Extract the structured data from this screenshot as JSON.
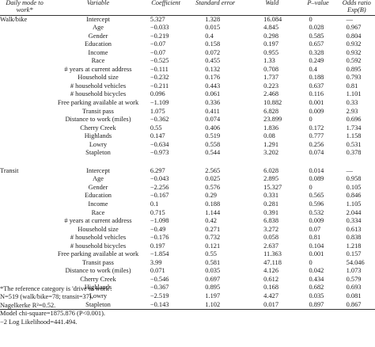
{
  "headers": {
    "group": "Daily mode to work*",
    "variable": "Variable",
    "coefficient": "Coefficient",
    "se": "Standard error",
    "wald": "Wald",
    "p": "P–value",
    "or": "Odds ratio Exp(B)"
  },
  "groups": [
    {
      "label": "Walk/bike",
      "rows": [
        {
          "var": "Intercept",
          "coef": "5.327",
          "se": "1.328",
          "wald": "16.084",
          "p": "0",
          "or": "—"
        },
        {
          "var": "Age",
          "coef": "−0.033",
          "se": "0.015",
          "wald": "4.845",
          "p": "0.028",
          "or": "0.967"
        },
        {
          "var": "Gender",
          "coef": "−0.219",
          "se": "0.4",
          "wald": "0.298",
          "p": "0.585",
          "or": "0.804"
        },
        {
          "var": "Education",
          "coef": "−0.07",
          "se": "0.158",
          "wald": "0.197",
          "p": "0.657",
          "or": "0.932"
        },
        {
          "var": "Income",
          "coef": "−0.07",
          "se": "0.072",
          "wald": "0.955",
          "p": "0.328",
          "or": "0.932"
        },
        {
          "var": "Race",
          "coef": "−0.525",
          "se": "0.455",
          "wald": "1.33",
          "p": "0.249",
          "or": "0.592"
        },
        {
          "var": "# years at current address",
          "coef": "−0.111",
          "se": "0.132",
          "wald": "0.708",
          "p": "0.4",
          "or": "0.895"
        },
        {
          "var": "Household size",
          "coef": "−0.232",
          "se": "0.176",
          "wald": "1.737",
          "p": "0.188",
          "or": "0.793"
        },
        {
          "var": "# household vehicles",
          "coef": "−0.211",
          "se": "0.443",
          "wald": "0.223",
          "p": "0.637",
          "or": "0.81"
        },
        {
          "var": "# household bicycles",
          "coef": "0.096",
          "se": "0.061",
          "wald": "2.468",
          "p": "0.116",
          "or": "1.101"
        },
        {
          "var": "Free parking available at work",
          "coef": "−1.109",
          "se": "0.336",
          "wald": "10.882",
          "p": "0.001",
          "or": "0.33"
        },
        {
          "var": "Transit pass",
          "coef": "1.075",
          "se": "0.411",
          "wald": "6.828",
          "p": "0.009",
          "or": "2.93"
        },
        {
          "var": "Distance to work (miles)",
          "coef": "−0.362",
          "se": "0.074",
          "wald": "23.899",
          "p": "0",
          "or": "0.696"
        },
        {
          "var": "Cherry Creek",
          "coef": "0.55",
          "se": "0.406",
          "wald": "1.836",
          "p": "0.172",
          "or": "1.734"
        },
        {
          "var": "Highlands",
          "coef": "0.147",
          "se": "0.519",
          "wald": "0.08",
          "p": "0.777",
          "or": "1.158"
        },
        {
          "var": "Lowry",
          "coef": "−0.634",
          "se": "0.558",
          "wald": "1.291",
          "p": "0.256",
          "or": "0.531"
        },
        {
          "var": "Stapleton",
          "coef": "−0.973",
          "se": "0.544",
          "wald": "3.202",
          "p": "0.074",
          "or": "0.378"
        }
      ]
    },
    {
      "label": "Transit",
      "rows": [
        {
          "var": "Intercept",
          "coef": "6.297",
          "se": "2.565",
          "wald": "6.028",
          "p": "0.014",
          "or": "—"
        },
        {
          "var": "Age",
          "coef": "−0.043",
          "se": "0.025",
          "wald": "2.895",
          "p": "0.089",
          "or": "0.958"
        },
        {
          "var": "Gender",
          "coef": "−2.256",
          "se": "0.576",
          "wald": "15.327",
          "p": "0",
          "or": "0.105"
        },
        {
          "var": "Education",
          "coef": "−0.167",
          "se": "0.29",
          "wald": "0.331",
          "p": "0.565",
          "or": "0.846"
        },
        {
          "var": "Income",
          "coef": "0.1",
          "se": "0.188",
          "wald": "0.281",
          "p": "0.596",
          "or": "1.105"
        },
        {
          "var": "Race",
          "coef": "0.715",
          "se": "1.144",
          "wald": "0.391",
          "p": "0.532",
          "or": "2.044"
        },
        {
          "var": "# years at current address",
          "coef": "−1.098",
          "se": "0.42",
          "wald": "6.838",
          "p": "0.009",
          "or": "0.334"
        },
        {
          "var": "Household size",
          "coef": "−0.49",
          "se": "0.271",
          "wald": "3.272",
          "p": "0.07",
          "or": "0.613"
        },
        {
          "var": "# household vehicles",
          "coef": "−0.176",
          "se": "0.732",
          "wald": "0.058",
          "p": "0.81",
          "or": "0.838"
        },
        {
          "var": "# household bicycles",
          "coef": "0.197",
          "se": "0.121",
          "wald": "2.637",
          "p": "0.104",
          "or": "1.218"
        },
        {
          "var": "Free parking available at work",
          "coef": "−1.854",
          "se": "0.55",
          "wald": "11.363",
          "p": "0.001",
          "or": "0.157"
        },
        {
          "var": "Transit pass",
          "coef": "3.99",
          "se": "0.581",
          "wald": "47.118",
          "p": "0",
          "or": "54.046"
        },
        {
          "var": "Distance to work (miles)",
          "coef": "0.071",
          "se": "0.035",
          "wald": "4.126",
          "p": "0.042",
          "or": "1.073"
        },
        {
          "var": "Cherry Creek",
          "coef": "−0.546",
          "se": "0.697",
          "wald": "0.612",
          "p": "0.434",
          "or": "0.579"
        },
        {
          "var": "Highlands",
          "coef": "−0.367",
          "se": "0.895",
          "wald": "0.168",
          "p": "0.682",
          "or": "0.693"
        },
        {
          "var": "Lowry",
          "coef": "−2.519",
          "se": "1.197",
          "wald": "4.427",
          "p": "0.035",
          "or": "0.081"
        },
        {
          "var": "Stapleton",
          "coef": "−0.143",
          "se": "1.102",
          "wald": "0.017",
          "p": "0.897",
          "or": "0.867"
        }
      ]
    }
  ],
  "notes": [
    "*The reference category is 'drive to work'.",
    "N=519 (walk/bike=78; transit=37).",
    "Nagelkerke R²=0.52.",
    "Model chi-square=1875.876 (P<0.001).",
    "−2 Log Likelihood=441.494."
  ]
}
